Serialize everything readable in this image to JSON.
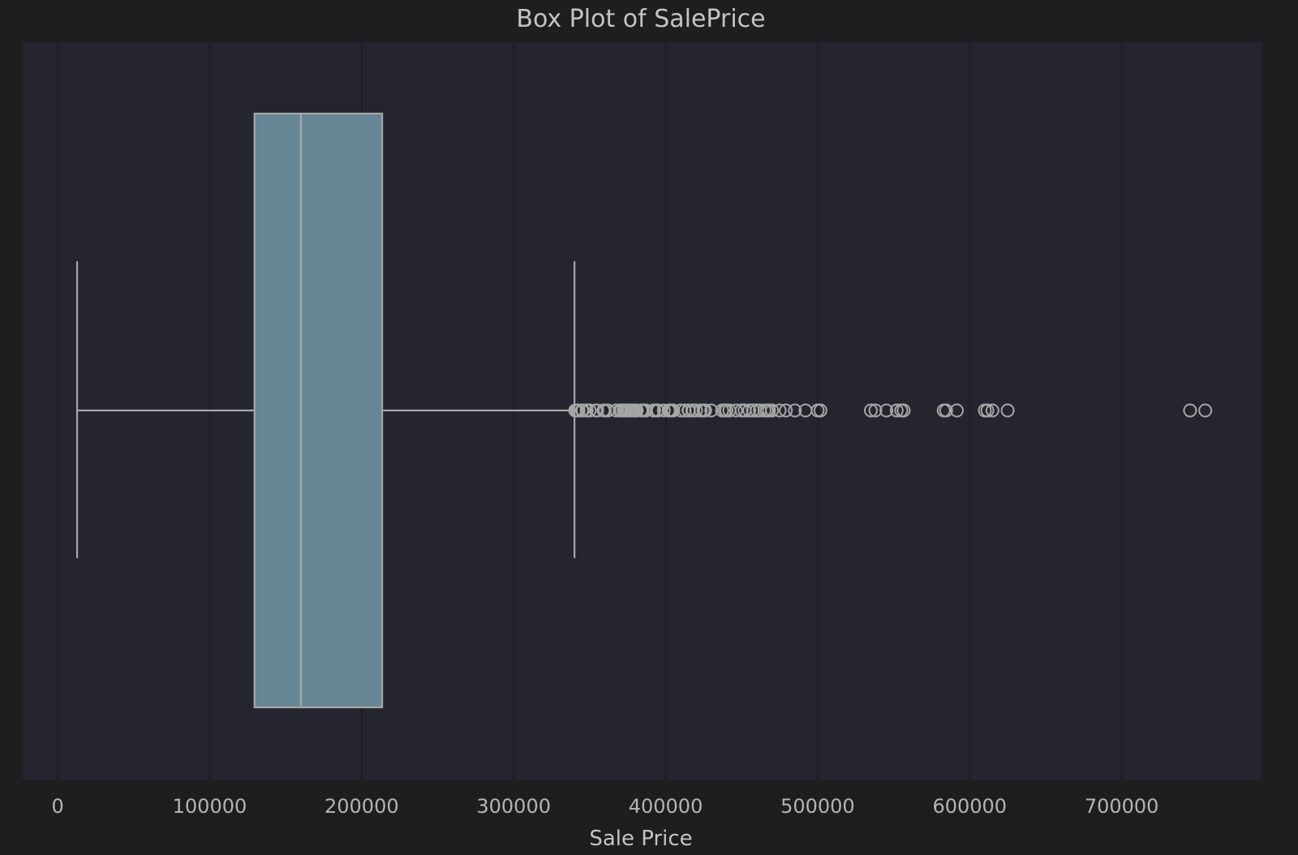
{
  "colors": {
    "figure_bg": "#1e1e21",
    "axes_bg": "#25252f",
    "grid": "#1b1b1e",
    "box_fill": "#668696",
    "line": "#a6a6a6",
    "text": "#c4c4c4"
  },
  "chart_data": {
    "type": "box",
    "orientation": "horizontal",
    "title": "Box Plot of SalePrice",
    "xlabel": "Sale Price",
    "ylabel": "",
    "xlim": [
      -23000,
      792000
    ],
    "xticks": [
      0,
      100000,
      200000,
      300000,
      400000,
      500000,
      600000,
      700000
    ],
    "xtick_labels": [
      "0",
      "100000",
      "200000",
      "300000",
      "400000",
      "500000",
      "600000",
      "700000"
    ],
    "grid": true,
    "whisker_low": 12789,
    "q1": 129500,
    "median": 160000,
    "q3": 213500,
    "whisker_high": 340000,
    "outliers": [
      340500,
      341000,
      342000,
      342643,
      345000,
      345474,
      348000,
      350000,
      354000,
      355000,
      359100,
      360000,
      361919,
      367294,
      369900,
      370000,
      370878,
      372402,
      372500,
      373000,
      374000,
      375000,
      376162,
      377426,
      377500,
      378500,
      379000,
      380000,
      381000,
      383970,
      385000,
      386250,
      387000,
      392000,
      392500,
      394432,
      394617,
      395000,
      398800,
      402000,
      402861,
      403000,
      404000,
      405000,
      410000,
      412500,
      415000,
      415298,
      417500,
      418000,
      420000,
      423000,
      424870,
      426000,
      430000,
      437154,
      438780,
      440000,
      441929,
      446261,
      450000,
      451950,
      455000,
      457347,
      460000,
      462000,
      465000,
      466500,
      468000,
      470000,
      475000,
      479069,
      485000,
      492000,
      500000,
      501837,
      535000,
      538000,
      545224,
      552000,
      555000,
      556581,
      582933,
      584500,
      591587,
      610000,
      611657,
      615000,
      625000,
      745000,
      755000
    ]
  }
}
